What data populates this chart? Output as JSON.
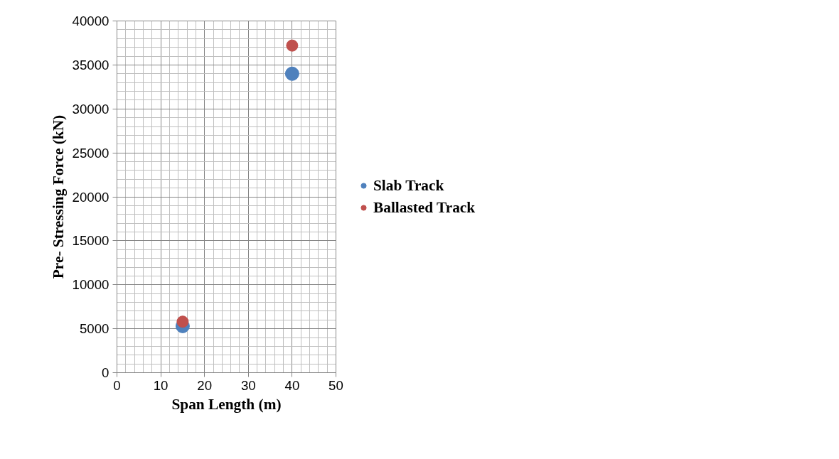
{
  "chart_data": {
    "type": "scatter",
    "xlabel": "Span Length (m)",
    "ylabel": "Pre- Stressing Force (kN)",
    "x": [
      15,
      40
    ],
    "series": [
      {
        "name": "Slab Track",
        "color": "#4f81bd",
        "values": [
          5300,
          34000
        ]
      },
      {
        "name": "Ballasted Track",
        "color": "#c0504d",
        "values": [
          5800,
          37200
        ]
      }
    ],
    "xlim": [
      0,
      50
    ],
    "xticks": [
      0,
      10,
      20,
      30,
      40,
      50
    ],
    "ylim": [
      0,
      40000
    ],
    "yticks": [
      0,
      5000,
      10000,
      15000,
      20000,
      25000,
      30000,
      35000,
      40000
    ],
    "grid": true,
    "legend": "right",
    "marker": "circle"
  }
}
